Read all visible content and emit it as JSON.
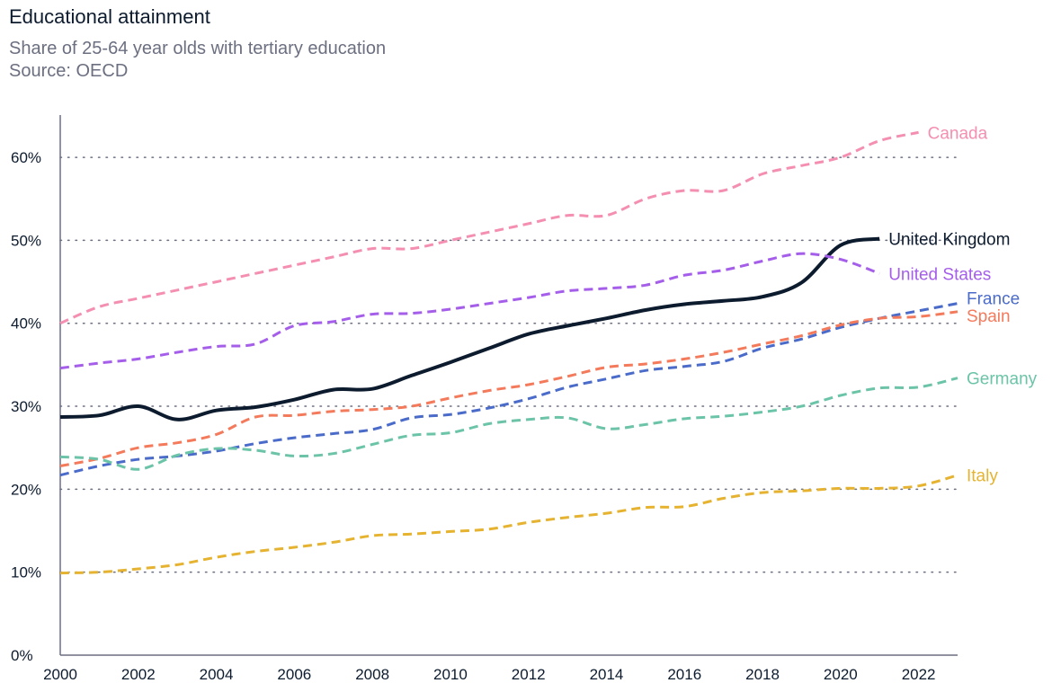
{
  "title": "Educational attainment",
  "subtitle": "Share of 25-64 year olds with tertiary education",
  "source": "Source: OECD",
  "chart_data": {
    "type": "line",
    "title": "Educational attainment",
    "subtitle": "Share of 25-64 year olds with tertiary education",
    "xlabel": "",
    "ylabel": "",
    "xlim": [
      2000,
      2023
    ],
    "ylim": [
      0,
      65
    ],
    "x_ticks": [
      2000,
      2002,
      2004,
      2006,
      2008,
      2010,
      2012,
      2014,
      2016,
      2018,
      2020,
      2022
    ],
    "y_ticks": [
      0,
      10,
      20,
      30,
      40,
      50,
      60
    ],
    "y_tick_labels": [
      "0%",
      "10%",
      "20%",
      "30%",
      "40%",
      "50%",
      "60%"
    ],
    "grid": "horizontal dotted",
    "legend": "direct labels at line ends",
    "series": [
      {
        "name": "Canada",
        "color": "#f48fb1",
        "dash": true,
        "x": [
          2000,
          2001,
          2002,
          2003,
          2004,
          2005,
          2006,
          2007,
          2008,
          2009,
          2010,
          2011,
          2012,
          2013,
          2014,
          2015,
          2016,
          2017,
          2018,
          2019,
          2020,
          2021,
          2022
        ],
        "values": [
          40,
          42,
          43,
          44,
          45,
          46,
          47,
          48,
          49,
          49,
          50,
          51,
          52,
          53,
          53,
          55,
          56,
          56,
          58,
          59,
          60,
          62,
          63
        ]
      },
      {
        "name": "United Kingdom",
        "color": "#0d1b2e",
        "dash": false,
        "x": [
          2000,
          2001,
          2002,
          2003,
          2004,
          2005,
          2006,
          2007,
          2008,
          2009,
          2010,
          2011,
          2012,
          2013,
          2014,
          2015,
          2016,
          2017,
          2018,
          2019,
          2020,
          2021
        ],
        "values": [
          28.7,
          28.9,
          30.0,
          28.4,
          29.5,
          29.9,
          30.8,
          32.0,
          32.1,
          33.7,
          35.3,
          37.0,
          38.7,
          39.7,
          40.6,
          41.6,
          42.3,
          42.7,
          43.2,
          44.9,
          49.4,
          50.2
        ]
      },
      {
        "name": "United States",
        "color": "#a55eea",
        "dash": true,
        "x": [
          2000,
          2001,
          2002,
          2003,
          2004,
          2005,
          2006,
          2007,
          2008,
          2009,
          2010,
          2011,
          2012,
          2013,
          2014,
          2015,
          2016,
          2017,
          2018,
          2019,
          2020,
          2021
        ],
        "values": [
          34.6,
          35.2,
          35.7,
          36.5,
          37.2,
          37.5,
          39.7,
          40.2,
          41.1,
          41.2,
          41.7,
          42.4,
          43.1,
          43.9,
          44.2,
          44.6,
          45.8,
          46.4,
          47.5,
          48.4,
          47.7,
          46.0
        ]
      },
      {
        "name": "France",
        "color": "#4a6bc9",
        "dash": true,
        "x": [
          2000,
          2001,
          2002,
          2003,
          2004,
          2005,
          2006,
          2007,
          2008,
          2009,
          2010,
          2011,
          2012,
          2013,
          2014,
          2015,
          2016,
          2017,
          2018,
          2019,
          2020,
          2021,
          2022,
          2023
        ],
        "values": [
          21.7,
          22.8,
          23.6,
          24.0,
          24.6,
          25.5,
          26.2,
          26.7,
          27.2,
          28.6,
          29.0,
          29.8,
          30.9,
          32.3,
          33.3,
          34.3,
          34.8,
          35.4,
          37.0,
          38.1,
          39.5,
          40.6,
          41.5,
          42.4
        ]
      },
      {
        "name": "Spain",
        "color": "#f47a5c",
        "dash": true,
        "x": [
          2000,
          2001,
          2002,
          2003,
          2004,
          2005,
          2006,
          2007,
          2008,
          2009,
          2010,
          2011,
          2012,
          2013,
          2014,
          2015,
          2016,
          2017,
          2018,
          2019,
          2020,
          2021,
          2022,
          2023
        ],
        "values": [
          22.8,
          23.7,
          25.0,
          25.6,
          26.6,
          28.7,
          28.9,
          29.4,
          29.6,
          30.0,
          31.0,
          31.9,
          32.6,
          33.6,
          34.7,
          35.1,
          35.7,
          36.5,
          37.5,
          38.5,
          39.8,
          40.6,
          40.8,
          41.4
        ]
      },
      {
        "name": "Germany",
        "color": "#6cc4a8",
        "dash": true,
        "x": [
          2000,
          2001,
          2002,
          2003,
          2004,
          2005,
          2006,
          2007,
          2008,
          2009,
          2010,
          2011,
          2012,
          2013,
          2014,
          2015,
          2016,
          2017,
          2018,
          2019,
          2020,
          2021,
          2022,
          2023
        ],
        "values": [
          23.9,
          23.6,
          22.4,
          24.1,
          24.9,
          24.7,
          24.0,
          24.3,
          25.4,
          26.5,
          26.8,
          27.9,
          28.4,
          28.6,
          27.3,
          27.8,
          28.5,
          28.8,
          29.3,
          30.0,
          31.3,
          32.2,
          32.3,
          33.4
        ]
      },
      {
        "name": "Italy",
        "color": "#e5b330",
        "dash": true,
        "x": [
          2000,
          2001,
          2002,
          2003,
          2004,
          2005,
          2006,
          2007,
          2008,
          2009,
          2010,
          2011,
          2012,
          2013,
          2014,
          2015,
          2016,
          2017,
          2018,
          2019,
          2020,
          2021,
          2022,
          2023
        ],
        "values": [
          9.9,
          10.0,
          10.4,
          10.9,
          11.8,
          12.5,
          13.0,
          13.6,
          14.4,
          14.6,
          14.9,
          15.2,
          16.0,
          16.6,
          17.1,
          17.8,
          17.9,
          18.9,
          19.6,
          19.8,
          20.1,
          20.1,
          20.4,
          21.7
        ]
      }
    ]
  }
}
